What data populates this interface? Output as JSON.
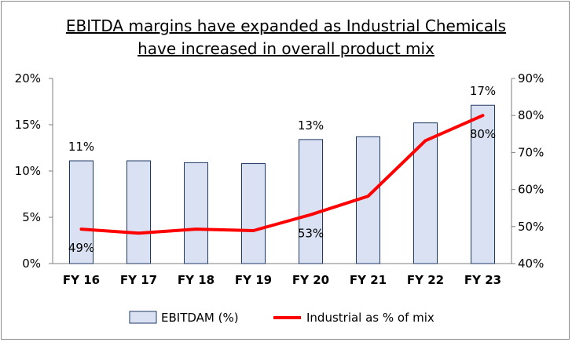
{
  "chart_data": {
    "type": "bar",
    "title_line1": "EBITDA margins have expanded as Industrial Chemicals",
    "title_line2": "have increased in overall product mix",
    "categories": [
      "FY 16",
      "FY 17",
      "FY 18",
      "FY 19",
      "FY 20",
      "FY 21",
      "FY 22",
      "FY 23"
    ],
    "series": [
      {
        "name": "EBITDAM (%)",
        "type": "bar",
        "axis": "left",
        "values": [
          11.1,
          11.1,
          10.9,
          10.8,
          13.4,
          13.7,
          15.2,
          17.1
        ],
        "data_labels": [
          "11%",
          "",
          "",
          "",
          "13%",
          "",
          "",
          "17%"
        ],
        "color": "#d9e1f2",
        "border_color": "#1f3864"
      },
      {
        "name": "Industrial as % of mix",
        "type": "line",
        "axis": "right",
        "values": [
          49.3,
          48.2,
          49.3,
          48.9,
          53.2,
          58.2,
          73.2,
          80.0
        ],
        "data_labels": [
          "49%",
          "",
          "",
          "",
          "53%",
          "",
          "",
          "80%"
        ],
        "color": "#ff0000"
      }
    ],
    "y_left": {
      "ylim": [
        0,
        20
      ],
      "ticks": [
        0,
        5,
        10,
        15,
        20
      ],
      "tick_labels": [
        "0%",
        "5%",
        "10%",
        "15%",
        "20%"
      ]
    },
    "y_right": {
      "ylim": [
        40,
        90
      ],
      "ticks": [
        40,
        50,
        60,
        70,
        80,
        90
      ],
      "tick_labels": [
        "40%",
        "50%",
        "60%",
        "70%",
        "80%",
        "90%"
      ]
    },
    "grid": false,
    "legend_position": "bottom"
  }
}
